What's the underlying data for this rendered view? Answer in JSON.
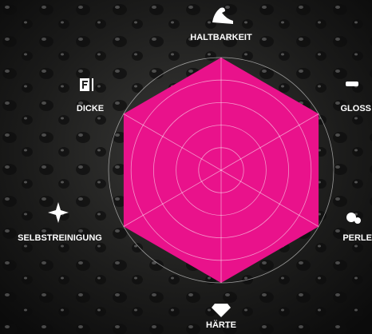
{
  "chart_data": {
    "type": "radar",
    "axes": [
      "HALTBARKEIT",
      "GLOSS",
      "PERLE",
      "HÄRTE",
      "SELBSTREINIGUNG",
      "DICKE"
    ],
    "series": [
      {
        "color": "#e9128b",
        "values": [
          100,
          100,
          100,
          100,
          100,
          100
        ]
      }
    ],
    "rlim": [
      0,
      100
    ],
    "rticks": [
      20,
      40,
      60,
      80,
      100
    ],
    "grid": true
  }
}
